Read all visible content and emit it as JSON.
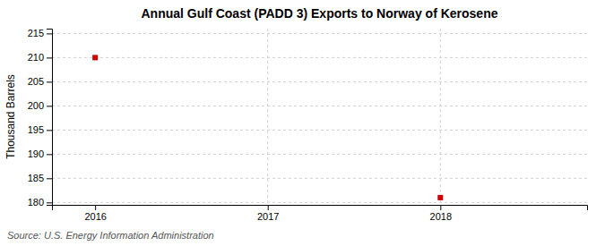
{
  "chart_data": {
    "type": "scatter",
    "title": "Annual Gulf Coast (PADD 3) Exports to Norway of Kerosene",
    "ylabel": "Thousand Barrels",
    "source": "Source: U.S. Energy Information Administration",
    "x": [
      2016,
      2018
    ],
    "values": [
      210,
      181
    ],
    "color": "#cc0000",
    "marker": "square",
    "xlim": [
      2015.75,
      2018.85
    ],
    "ylim": [
      179.5,
      216
    ],
    "xticks": [
      2016,
      2017,
      2018
    ],
    "yticks": [
      180,
      185,
      190,
      195,
      200,
      205,
      210,
      215
    ],
    "vlines": [
      2017,
      2018
    ],
    "grid": true
  }
}
